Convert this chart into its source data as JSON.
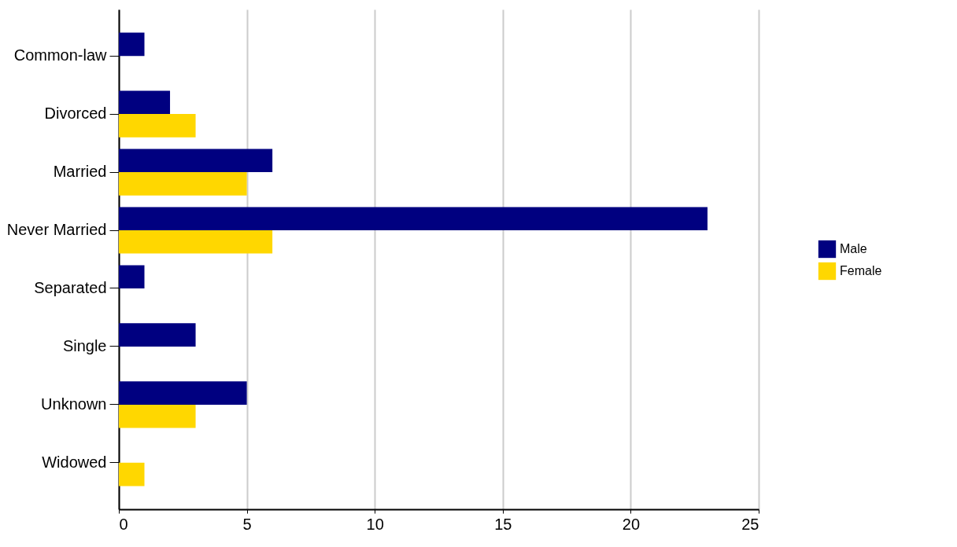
{
  "chart_data": {
    "type": "bar",
    "orientation": "horizontal",
    "categories": [
      "Common-law",
      "Divorced",
      "Married",
      "Never Married",
      "Separated",
      "Single",
      "Unknown",
      "Widowed"
    ],
    "series": [
      {
        "name": "Male",
        "color": "#000080",
        "values": [
          1,
          2,
          6,
          23,
          1,
          3,
          5,
          null
        ]
      },
      {
        "name": "Female",
        "color": "#ffd700",
        "values": [
          null,
          3,
          5,
          6,
          null,
          null,
          3,
          1
        ]
      }
    ],
    "xlim": [
      0,
      25
    ],
    "xticks": [
      0,
      5,
      10,
      15,
      20,
      25
    ],
    "grid": "x",
    "legend": "right"
  }
}
